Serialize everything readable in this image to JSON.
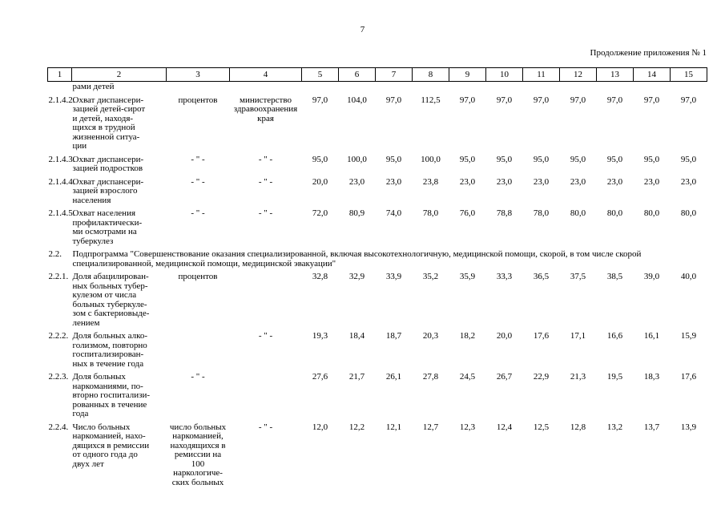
{
  "page": {
    "number": "7",
    "continuation_note": "Продолжение приложения № 1"
  },
  "table": {
    "column_numbers": [
      "1",
      "2",
      "3",
      "4",
      "5",
      "6",
      "7",
      "8",
      "9",
      "10",
      "11",
      "12",
      "13",
      "14",
      "15"
    ],
    "rows": [
      {
        "type": "normal",
        "num": "",
        "name": "рами детей",
        "unit": "",
        "source": "",
        "values": [
          "",
          "",
          "",
          "",
          "",
          "",
          "",
          "",
          "",
          "",
          ""
        ]
      },
      {
        "type": "normal",
        "num": "2.1.4.2.",
        "name": "Охват диспансери-\nзацией детей-сирот\nи детей, находя-\nщихся в трудной\nжизненной ситуа-\nции",
        "unit": "процентов",
        "source": "министерство\nздравоохранения\nкрая",
        "values": [
          "97,0",
          "104,0",
          "97,0",
          "112,5",
          "97,0",
          "97,0",
          "97,0",
          "97,0",
          "97,0",
          "97,0",
          "97,0"
        ]
      },
      {
        "type": "normal",
        "num": "2.1.4.3.",
        "name": "Охват диспансери-\nзацией подростков",
        "unit": "- \" -",
        "source": "- \" -",
        "values": [
          "95,0",
          "100,0",
          "95,0",
          "100,0",
          "95,0",
          "95,0",
          "95,0",
          "95,0",
          "95,0",
          "95,0",
          "95,0"
        ]
      },
      {
        "type": "normal",
        "num": "2.1.4.4.",
        "name": "Охват диспансери-\nзацией взрослого\nнаселения",
        "unit": "- \" -",
        "source": "- \" -",
        "values": [
          "20,0",
          "23,0",
          "23,0",
          "23,8",
          "23,0",
          "23,0",
          "23,0",
          "23,0",
          "23,0",
          "23,0",
          "23,0"
        ]
      },
      {
        "type": "normal",
        "num": "2.1.4.5.",
        "name": "Охват населения\nпрофилактически-\nми осмотрами на\nтуберкулез",
        "unit": "- \" -",
        "source": "- \" -",
        "values": [
          "72,0",
          "80,9",
          "74,0",
          "78,0",
          "76,0",
          "78,8",
          "78,0",
          "80,0",
          "80,0",
          "80,0",
          "80,0"
        ]
      },
      {
        "type": "section",
        "num": "2.2.",
        "name": "Подпрограмма \"Совершенствование оказания специализированной, включая высокотехнологичную, медицинской помощи, скорой, в том числе скорой\nспециализированной, медицинской помощи, медицинской эвакуации\""
      },
      {
        "type": "normal",
        "num": "2.2.1.",
        "name": "Доля абацилирован-\nных больных тубер-\nкулезом от числа\nбольных туберкуле-\nзом с бактериовыде-\nлением",
        "unit": "процентов",
        "source": "",
        "values": [
          "32,8",
          "32,9",
          "33,9",
          "35,2",
          "35,9",
          "33,3",
          "36,5",
          "37,5",
          "38,5",
          "39,0",
          "40,0"
        ]
      },
      {
        "type": "normal",
        "num": "2.2.2.",
        "name": "Доля больных алко-\nголизмом, повторно\nгоспитализирован-\nных в течение года",
        "unit": "",
        "source": "- \" -",
        "values": [
          "19,3",
          "18,4",
          "18,7",
          "20,3",
          "18,2",
          "20,0",
          "17,6",
          "17,1",
          "16,6",
          "16,1",
          "15,9"
        ]
      },
      {
        "type": "normal",
        "num": "2.2.3.",
        "name": "Доля больных\nнаркоманиями, по-\nвторно госпитализи-\nрованных в течение\nгода",
        "unit": "- \" -",
        "source": "",
        "values": [
          "27,6",
          "21,7",
          "26,1",
          "27,8",
          "24,5",
          "26,7",
          "22,9",
          "21,3",
          "19,5",
          "18,3",
          "17,6"
        ]
      },
      {
        "type": "normal",
        "num": "2.2.4.",
        "name": "Число больных\nнаркоманией, нахо-\nдящихся в ремиссии\nот одного года до\nдвух лет",
        "unit": "число больных\nнаркоманией,\nнаходящихся в\nремиссии на 100\nнаркологиче-\nских больных",
        "source": "- \" -",
        "values": [
          "12,0",
          "12,2",
          "12,1",
          "12,7",
          "12,3",
          "12,4",
          "12,5",
          "12,8",
          "13,2",
          "13,7",
          "13,9"
        ]
      }
    ]
  }
}
